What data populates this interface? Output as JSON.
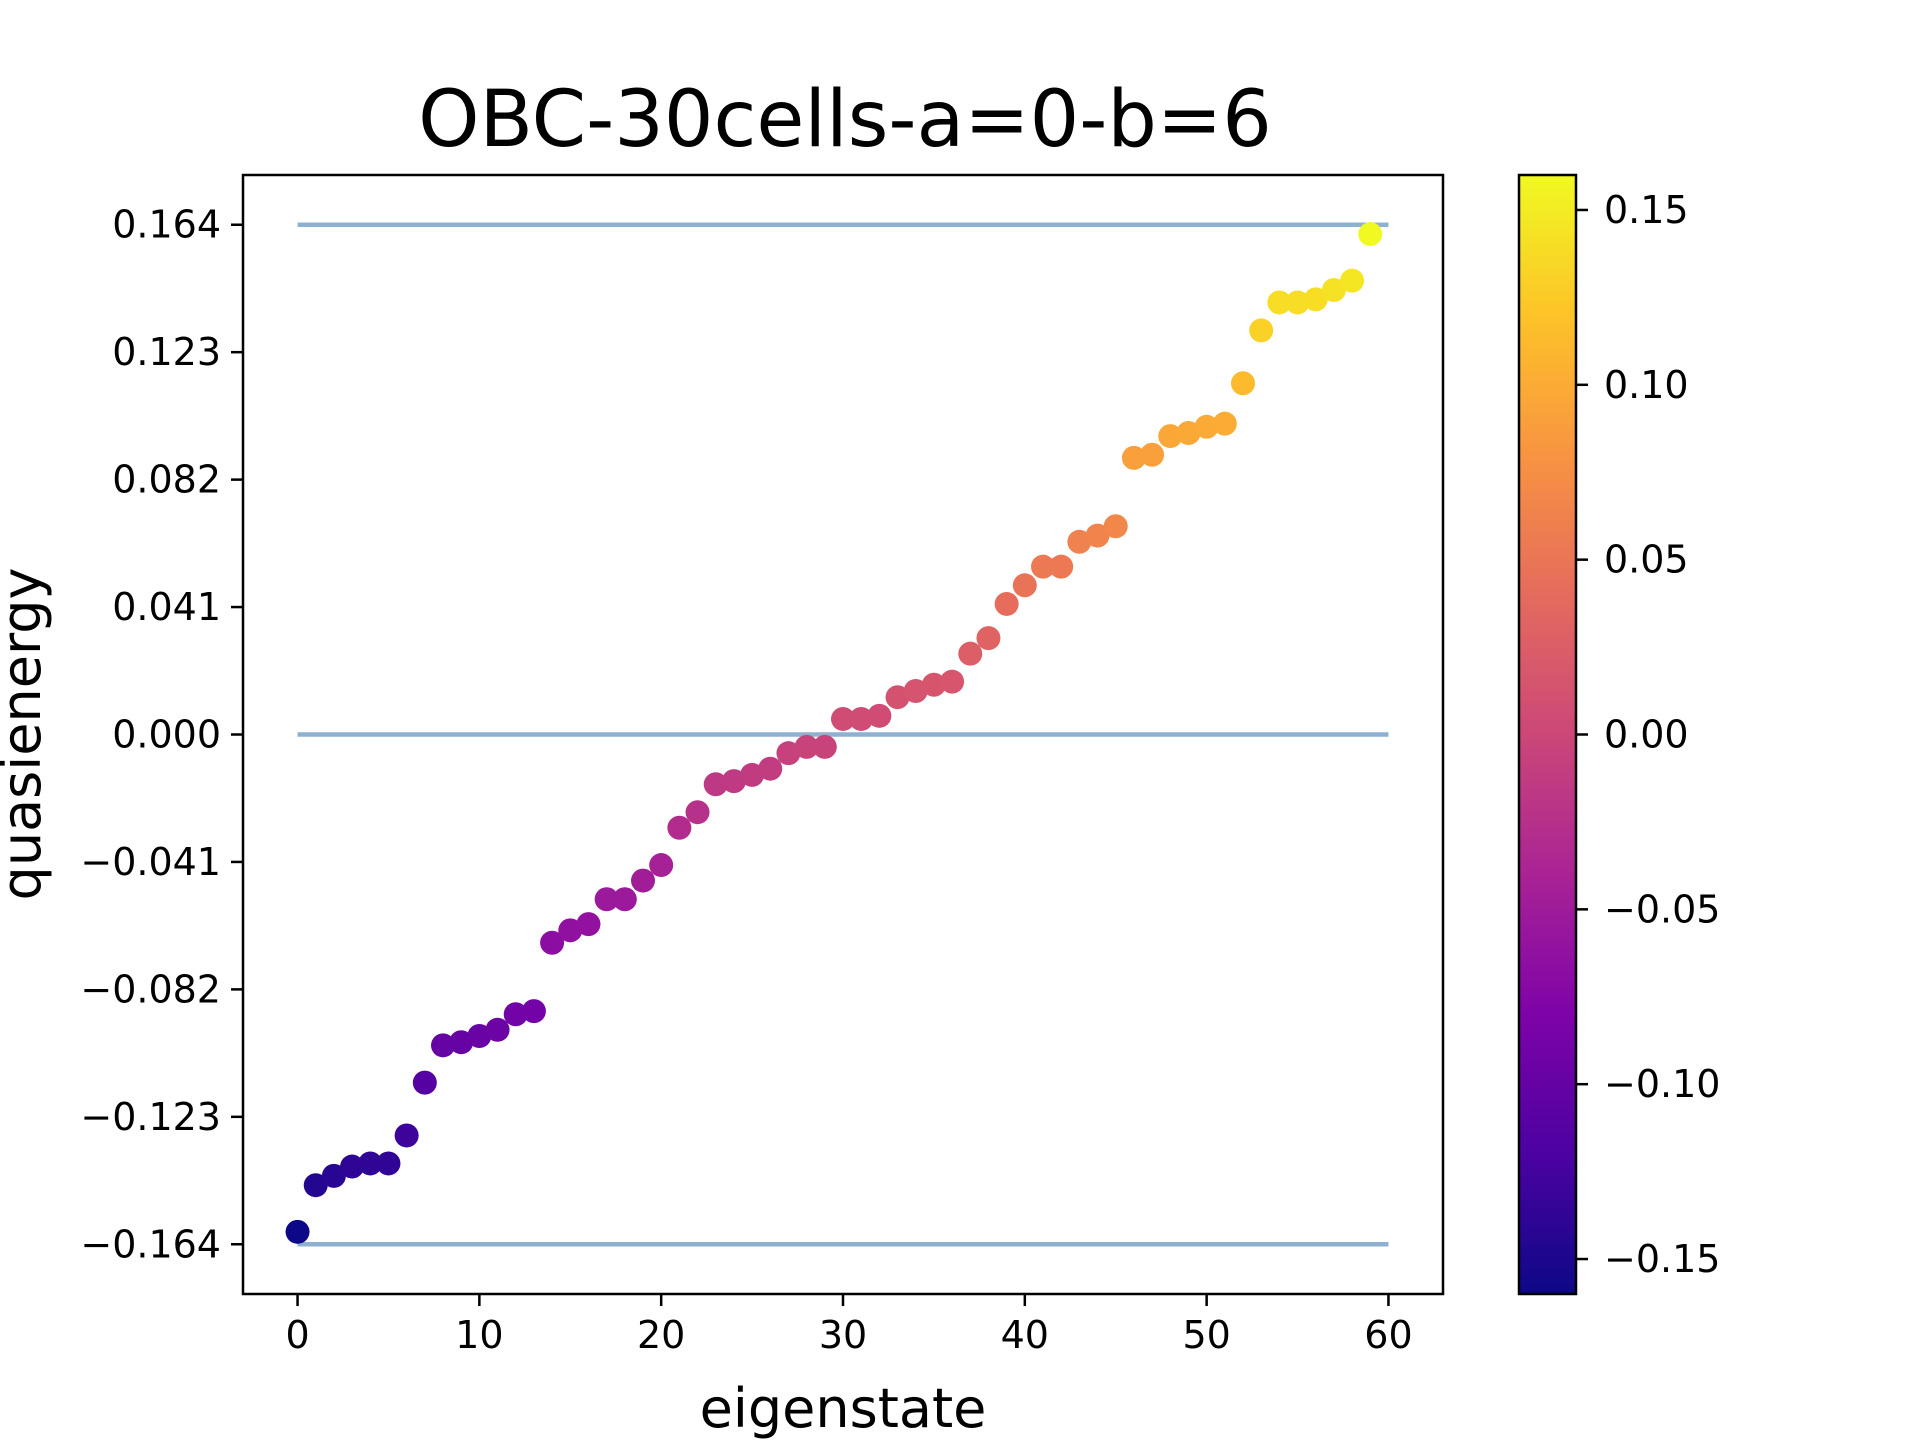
{
  "chart_data": {
    "type": "scatter",
    "title": "OBC-30cells-a=0-b=6",
    "xlabel": "eigenstate",
    "ylabel": "quasienergy",
    "xlim": [
      -3,
      63
    ],
    "ylim": [
      -0.18,
      0.18
    ],
    "x_ticks": [
      0,
      10,
      20,
      30,
      40,
      50,
      60
    ],
    "x_tick_labels": [
      "0",
      "10",
      "20",
      "30",
      "40",
      "50",
      "60"
    ],
    "y_ticks": [
      0.164,
      0.123,
      0.082,
      0.041,
      0.0,
      -0.041,
      -0.082,
      -0.123,
      -0.164
    ],
    "y_tick_labels": [
      "0.164",
      "0.123",
      "0.082",
      "0.041",
      "0.000",
      "−0.041",
      "−0.082",
      "−0.123",
      "−0.164"
    ],
    "reference_lines": [
      0.164,
      0.0,
      -0.164
    ],
    "reference_line_color": "#8fb1d0",
    "grid": false,
    "colormap": "plasma",
    "colorbar": {
      "vmin": -0.16,
      "vmax": 0.16,
      "ticks": [
        0.15,
        0.1,
        0.05,
        0.0,
        -0.05,
        -0.1,
        -0.15
      ],
      "tick_labels": [
        "0.15",
        "0.10",
        "0.05",
        "0.00",
        "−0.05",
        "−0.10",
        "−0.15"
      ]
    },
    "x": [
      0,
      1,
      2,
      3,
      4,
      5,
      6,
      7,
      8,
      9,
      10,
      11,
      12,
      13,
      14,
      15,
      16,
      17,
      18,
      19,
      20,
      21,
      22,
      23,
      24,
      25,
      26,
      27,
      28,
      29,
      30,
      31,
      32,
      33,
      34,
      35,
      36,
      37,
      38,
      39,
      40,
      41,
      42,
      43,
      44,
      45,
      46,
      47,
      48,
      49,
      50,
      51,
      52,
      53,
      54,
      55,
      56,
      57,
      58,
      59
    ],
    "values": [
      -0.16,
      -0.145,
      -0.142,
      -0.139,
      -0.138,
      -0.138,
      -0.129,
      -0.112,
      -0.1,
      -0.099,
      -0.097,
      -0.095,
      -0.09,
      -0.089,
      -0.067,
      -0.063,
      -0.061,
      -0.053,
      -0.053,
      -0.047,
      -0.042,
      -0.03,
      -0.025,
      -0.016,
      -0.015,
      -0.013,
      -0.011,
      -0.006,
      -0.004,
      -0.004,
      0.005,
      0.005,
      0.006,
      0.012,
      0.014,
      0.016,
      0.017,
      0.026,
      0.031,
      0.042,
      0.048,
      0.054,
      0.054,
      0.062,
      0.064,
      0.067,
      0.089,
      0.09,
      0.096,
      0.097,
      0.099,
      0.1,
      0.113,
      0.13,
      0.139,
      0.139,
      0.14,
      0.143,
      0.146,
      0.161
    ]
  }
}
